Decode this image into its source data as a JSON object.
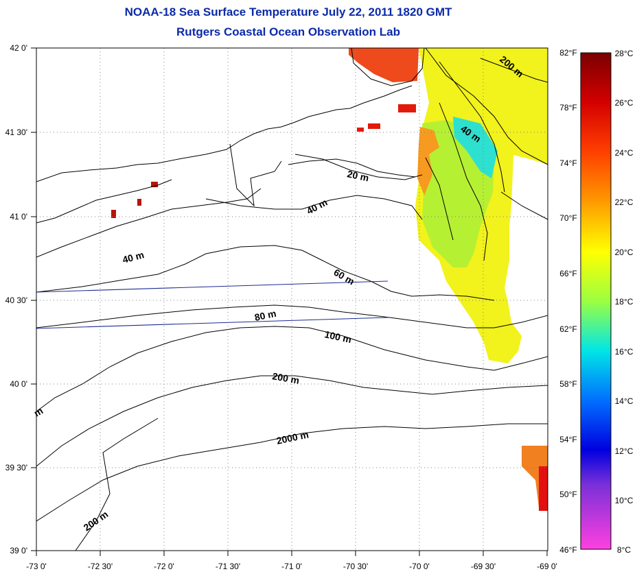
{
  "title_line1": "NOAA-18 Sea Surface Temperature July 22, 2011 1820 GMT",
  "title_line2": "Rutgers Coastal Ocean Observation Lab",
  "lat_labels": [
    "42 0'",
    "41 30'",
    "41 0'",
    "40 30'",
    "40 0'",
    "39 30'",
    "39 0'"
  ],
  "lon_labels": [
    "-73 0'",
    "-72 30'",
    "-72 0'",
    "-71 30'",
    "-71 0'",
    "-70 30'",
    "-70 0'",
    "-69 30'",
    "-69 0'"
  ],
  "fahrenheit_labels": [
    "82°F",
    "78°F",
    "74°F",
    "70°F",
    "66°F",
    "62°F",
    "58°F",
    "54°F",
    "50°F",
    "46°F"
  ],
  "celsius_labels": [
    "28°C",
    "26°C",
    "24°C",
    "22°C",
    "20°C",
    "18°C",
    "16°C",
    "14°C",
    "12°C",
    "10°C",
    "8°C"
  ],
  "contour_labels": {
    "c20": "20 m",
    "c40a": "40 m",
    "c40b": "40 m",
    "c40c": "40 m",
    "c60": "60 m",
    "c80": "80 m",
    "c100": "100 m",
    "c200a": "200 m",
    "c200b": "200 m",
    "c200c": "200 m",
    "c2000": "2000 m",
    "cedge": "m"
  },
  "colors": {
    "title": "#0b2aa8",
    "grid": "#808080"
  }
}
